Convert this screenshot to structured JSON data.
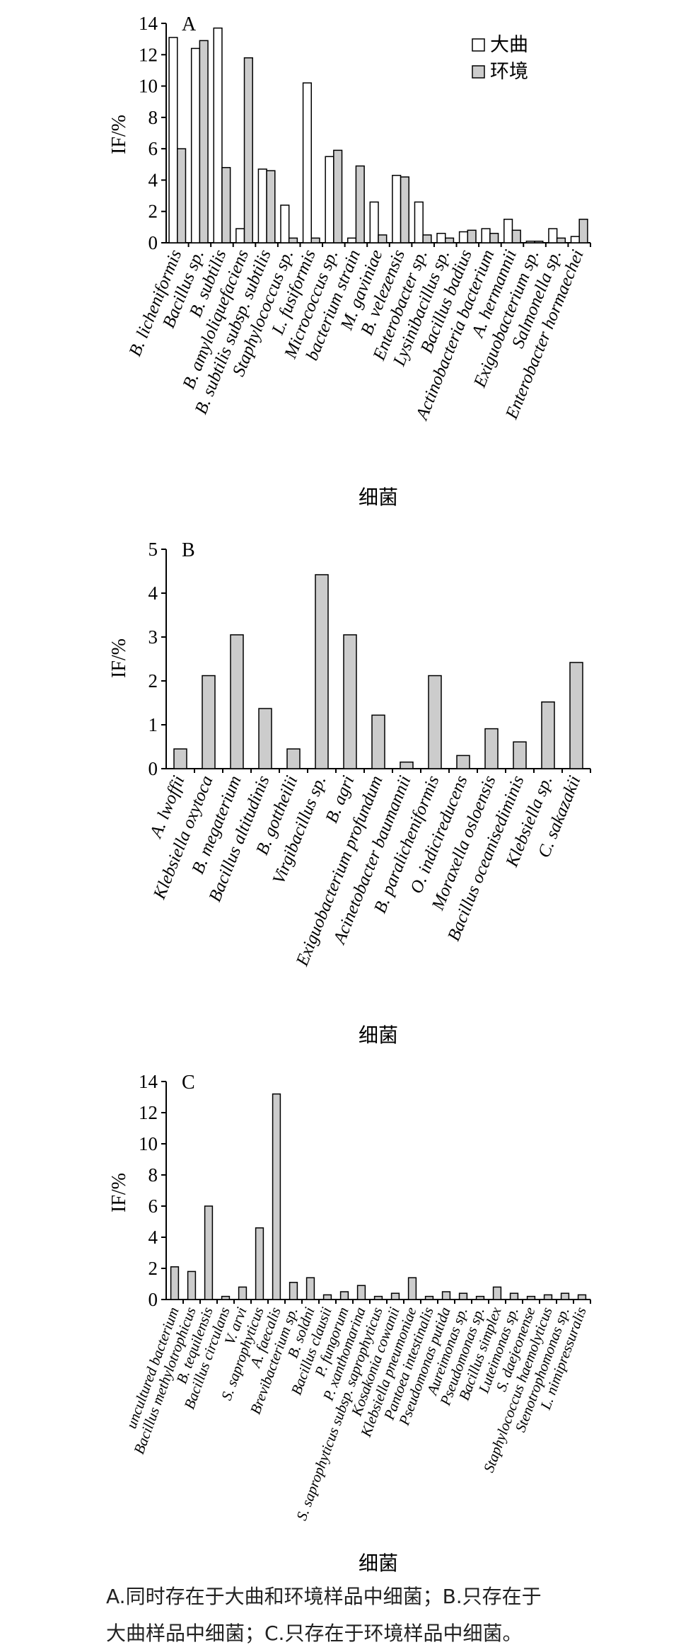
{
  "chart_data": [
    {
      "type": "bar",
      "panel_label": "A",
      "ylabel": "IF/%",
      "xlabel": "细菌",
      "ylim": [
        0,
        14
      ],
      "yticks": [
        0,
        2,
        4,
        6,
        8,
        10,
        12,
        14
      ],
      "legend": "top-right",
      "categories": [
        "B. licheniformis",
        "Bacillus sp.",
        "B. subtilis",
        "B. amyloliquefaciens",
        "B. subtilis subsp. subtilis",
        "Staphylococcus sp.",
        "L. fusiformis",
        "Micrococcus sp.",
        "bacterium strain",
        "M. gaviniae",
        "B. velezensis",
        "Enterobacter sp.",
        "Lysinibacillus sp.",
        "Bacillus badius",
        "Actinobacteria bacterium",
        "A. hermannii",
        "Exiguobacterium sp.",
        "Salmonella sp.",
        "Enterobacter hormaechei"
      ],
      "series": [
        {
          "name": "大曲",
          "color": "#ffffff",
          "values": [
            13.1,
            12.4,
            13.7,
            0.9,
            4.7,
            2.4,
            10.2,
            5.5,
            0.3,
            2.6,
            4.3,
            2.6,
            0.6,
            0.7,
            0.9,
            1.5,
            0.1,
            0.9,
            0.4
          ]
        },
        {
          "name": "环境",
          "color": "#cccccc",
          "values": [
            6.0,
            12.9,
            4.8,
            11.8,
            4.6,
            0.3,
            0.3,
            5.9,
            4.9,
            0.5,
            4.2,
            0.5,
            0.3,
            0.8,
            0.6,
            0.8,
            0.1,
            0.3,
            1.5
          ]
        }
      ]
    },
    {
      "type": "bar",
      "panel_label": "B",
      "ylabel": "IF/%",
      "xlabel": "细菌",
      "ylim": [
        0,
        5
      ],
      "yticks": [
        0,
        1,
        2,
        3,
        4,
        5
      ],
      "categories": [
        "A. lwoffii",
        "Klebsiella oxytoca",
        "B. megaterium",
        "Bacillus altitudinis",
        "B. gottheilii",
        "Virgibacillus sp.",
        "B. agri",
        "Exiguobacterium profundum",
        "Acinetobacter baumannii",
        "B. paralicheniformis",
        "O. indicireducens",
        "Moraxella osloensis",
        "Bacillus oceanisediminis",
        "Klebsiella sp.",
        "C. sakazakii"
      ],
      "series": [
        {
          "color": "#cccccc",
          "values": [
            0.45,
            2.12,
            3.05,
            1.37,
            0.45,
            4.42,
            3.05,
            1.22,
            0.15,
            2.12,
            0.3,
            0.91,
            0.61,
            1.52,
            2.42
          ]
        }
      ]
    },
    {
      "type": "bar",
      "panel_label": "C",
      "ylabel": "IF/%",
      "xlabel": "细菌",
      "ylim": [
        0,
        14
      ],
      "yticks": [
        0,
        2,
        4,
        6,
        8,
        10,
        12,
        14
      ],
      "categories": [
        "uncultured bacterium",
        "Bacillus methylotrophicus",
        "B. tequilensis",
        "Bacillus circulans",
        "V. arvi",
        "S. saprophyticus",
        "A. faecalis",
        "Brevibacterium sp.",
        "B. soldni",
        "Bacillus clausii",
        "P. fungorum",
        "P. xanthomarina",
        "S. saprophyticus subsp. saprophyticus",
        "Kosakonia cowanii",
        "Klebsiella pneumoniae",
        "Pantoea intestinalis",
        "Pseudomonas putida",
        "Aureimonas sp.",
        "Pseudomonas sp.",
        "Bacillus simplex",
        "Luteimonas sp.",
        "S. daejeonense",
        "Staphylococcus haemolyticus",
        "Stenotrophomonas sp.",
        "L. nimipressuralis"
      ],
      "series": [
        {
          "color": "#cccccc",
          "values": [
            2.1,
            1.8,
            6.0,
            0.2,
            0.8,
            4.6,
            13.2,
            1.1,
            1.4,
            0.3,
            0.5,
            0.9,
            0.2,
            0.4,
            1.4,
            0.2,
            0.5,
            0.4,
            0.2,
            0.8,
            0.4,
            0.2,
            0.3,
            0.4,
            0.3
          ]
        }
      ]
    }
  ],
  "caption": {
    "line1": "A.同时存在于大曲和环境样品中细菌；B.只存在于",
    "line2": "大曲样品中细菌；C.只存在于环境样品中细菌。"
  }
}
